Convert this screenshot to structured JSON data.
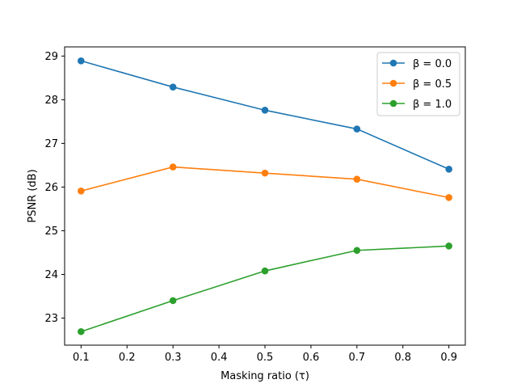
{
  "chart_data": {
    "type": "line",
    "title": "",
    "xlabel": "Masking ratio (τ)",
    "ylabel": "PSNR (dB)",
    "x": [
      0.1,
      0.3,
      0.5,
      0.7,
      0.9
    ],
    "xlim": [
      0.0643,
      0.9357
    ],
    "ylim": [
      22.38,
      29.21
    ],
    "xticks": [
      "0.1",
      "0.2",
      "0.3",
      "0.4",
      "0.5",
      "0.6",
      "0.7",
      "0.8",
      "0.9"
    ],
    "yticks": [
      "23",
      "24",
      "25",
      "26",
      "27",
      "28",
      "29"
    ],
    "grid": false,
    "legend_position": "top-right",
    "series": [
      {
        "name": "β = 0.0",
        "color": "#1f77b4",
        "values": [
          28.89,
          28.29,
          27.76,
          27.33,
          26.41
        ]
      },
      {
        "name": "β = 0.5",
        "color": "#ff7f0e",
        "values": [
          25.91,
          26.46,
          26.32,
          26.18,
          25.76
        ]
      },
      {
        "name": "β = 1.0",
        "color": "#2ca02c",
        "values": [
          22.69,
          23.4,
          24.08,
          24.55,
          24.65
        ]
      }
    ]
  }
}
